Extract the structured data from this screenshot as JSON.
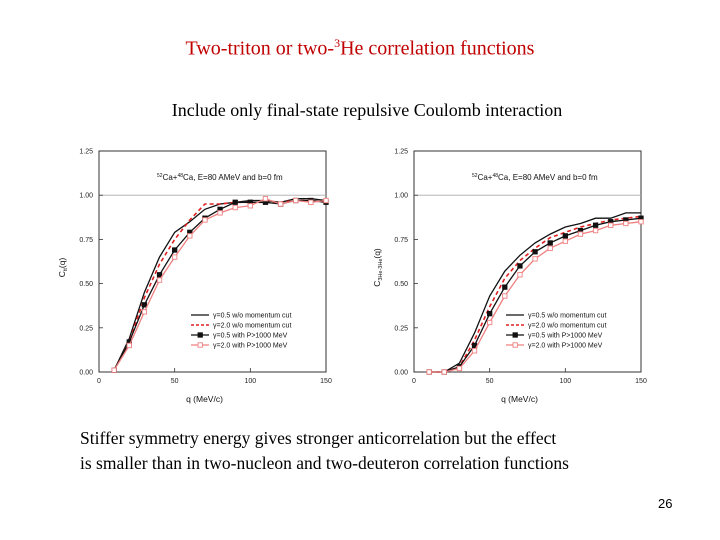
{
  "slide": {
    "title_main": "Two-triton or two-",
    "title_sup": "3",
    "title_rest": "He correlation functions",
    "subtitle": "Include only final-state repulsive Coulomb interaction",
    "caption_line1": "Stiffer symmetry energy gives stronger anticorrelation but the effect",
    "caption_line2": "is smaller than in two-nucleon and two-deuteron correlation functions",
    "page_number": "26"
  },
  "chart_data": [
    {
      "type": "line",
      "title": "52Ca+48Ca, E=80 AMeV and b=0 fm",
      "title_sup": "52",
      "title_sup2": "48",
      "title_text1": "Ca+",
      "title_text2": "Ca, E=80 AMeV and b=0 fm",
      "xlabel": "q (MeV/c)",
      "ylabel": "Ctt(q)",
      "ylabel_main": "C",
      "ylabel_sub": "tt",
      "ylabel_rest": "(q)",
      "xlim": [
        0,
        150
      ],
      "ylim": [
        0,
        1.25
      ],
      "xticks": [
        "0",
        "50",
        "100",
        "150"
      ],
      "yticks": [
        "0.00",
        "0.25",
        "0.50",
        "0.75",
        "1.00",
        "1.25"
      ],
      "reference_line": 1.0,
      "legend_position": "bottom-right",
      "series": [
        {
          "name": "γ=0.5 w/o momentum cut",
          "color": "#111111",
          "style": "solid",
          "marker": "none",
          "x": [
            10,
            20,
            30,
            40,
            50,
            60,
            70,
            80,
            90,
            100,
            110,
            120,
            130,
            140,
            150
          ],
          "y": [
            0.01,
            0.19,
            0.45,
            0.65,
            0.79,
            0.85,
            0.92,
            0.95,
            0.96,
            0.97,
            0.97,
            0.96,
            0.98,
            0.98,
            0.97
          ]
        },
        {
          "name": "γ=2.0 w/o momentum cut",
          "color": "#e02020",
          "style": "dashed",
          "marker": "none",
          "x": [
            10,
            20,
            30,
            40,
            50,
            60,
            70,
            80,
            90,
            100,
            110,
            120,
            130,
            140,
            150
          ],
          "y": [
            0.01,
            0.17,
            0.42,
            0.61,
            0.75,
            0.86,
            0.95,
            0.95,
            0.96,
            0.96,
            0.96,
            0.96,
            0.97,
            0.97,
            0.96
          ]
        },
        {
          "name": "γ=0.5 with P>1000 MeV",
          "color": "#111111",
          "style": "solid",
          "marker": "filled-square",
          "x": [
            10,
            20,
            30,
            40,
            50,
            60,
            70,
            80,
            90,
            100,
            110,
            120,
            130,
            140,
            150
          ],
          "y": [
            0.01,
            0.17,
            0.38,
            0.55,
            0.69,
            0.79,
            0.87,
            0.92,
            0.96,
            0.96,
            0.96,
            0.95,
            0.97,
            0.97,
            0.96
          ]
        },
        {
          "name": "γ=2.0 with P>1000 MeV",
          "color": "#f08080",
          "style": "solid",
          "marker": "open-square",
          "x": [
            10,
            20,
            30,
            40,
            50,
            60,
            70,
            80,
            90,
            100,
            110,
            120,
            130,
            140,
            150
          ],
          "y": [
            0.01,
            0.15,
            0.34,
            0.52,
            0.65,
            0.77,
            0.86,
            0.9,
            0.93,
            0.94,
            0.98,
            0.95,
            0.97,
            0.96,
            0.97
          ]
        }
      ]
    },
    {
      "type": "line",
      "title": "52Ca+48Ca, E=80 AMeV and b=0 fm",
      "title_sup": "52",
      "title_sup2": "48",
      "title_text1": "Ca+",
      "title_text2": "Ca, E=80 AMeV and b=0 fm",
      "xlabel": "q (MeV/c)",
      "ylabel": "C3He-3He(q)",
      "ylabel_main": "C",
      "ylabel_sub": "3He-3He",
      "ylabel_rest": "(q)",
      "xlim": [
        0,
        150
      ],
      "ylim": [
        0,
        1.25
      ],
      "xticks": [
        "0",
        "50",
        "100",
        "150"
      ],
      "yticks": [
        "0.00",
        "0.25",
        "0.50",
        "0.75",
        "1.00",
        "1.25"
      ],
      "reference_line": 1.0,
      "legend_position": "bottom-right",
      "series": [
        {
          "name": "γ=0.5 w/o momentum cut",
          "color": "#111111",
          "style": "solid",
          "marker": "none",
          "x": [
            10,
            20,
            30,
            40,
            50,
            60,
            70,
            80,
            90,
            100,
            110,
            120,
            130,
            140,
            150
          ],
          "y": [
            0.0,
            0.0,
            0.05,
            0.22,
            0.43,
            0.57,
            0.66,
            0.73,
            0.78,
            0.82,
            0.84,
            0.87,
            0.87,
            0.9,
            0.9
          ]
        },
        {
          "name": "γ=2.0 w/o momentum cut",
          "color": "#e02020",
          "style": "dashed",
          "marker": "none",
          "x": [
            10,
            20,
            30,
            40,
            50,
            60,
            70,
            80,
            90,
            100,
            110,
            120,
            130,
            140,
            150
          ],
          "y": [
            0.0,
            0.0,
            0.03,
            0.18,
            0.37,
            0.53,
            0.63,
            0.7,
            0.76,
            0.79,
            0.82,
            0.84,
            0.86,
            0.87,
            0.88
          ]
        },
        {
          "name": "γ=0.5 with P>1000 MeV",
          "color": "#111111",
          "style": "solid",
          "marker": "filled-square",
          "x": [
            10,
            20,
            30,
            40,
            50,
            60,
            70,
            80,
            90,
            100,
            110,
            120,
            130,
            140,
            150
          ],
          "y": [
            0.0,
            0.0,
            0.03,
            0.15,
            0.33,
            0.48,
            0.6,
            0.68,
            0.73,
            0.77,
            0.8,
            0.83,
            0.85,
            0.86,
            0.87
          ]
        },
        {
          "name": "γ=2.0 with P>1000 MeV",
          "color": "#f08080",
          "style": "solid",
          "marker": "open-square",
          "x": [
            10,
            20,
            30,
            40,
            50,
            60,
            70,
            80,
            90,
            100,
            110,
            120,
            130,
            140,
            150
          ],
          "y": [
            0.0,
            0.0,
            0.02,
            0.12,
            0.28,
            0.43,
            0.55,
            0.64,
            0.7,
            0.74,
            0.78,
            0.8,
            0.83,
            0.84,
            0.85
          ]
        }
      ]
    }
  ]
}
